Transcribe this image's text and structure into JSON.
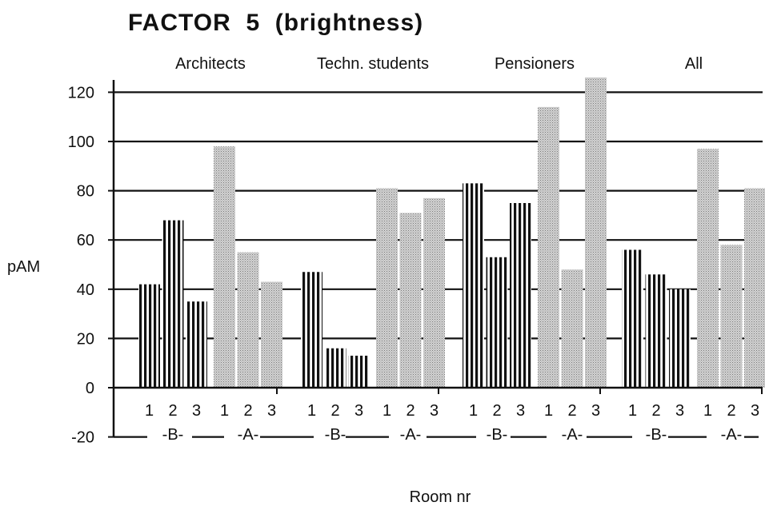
{
  "chart_data": {
    "type": "bar",
    "title": "FACTOR  5  (brightness)",
    "ylabel": "pAM",
    "xlabel": "Room nr",
    "ylim": [
      -20,
      125
    ],
    "yticks": [
      "120",
      "100",
      "80",
      "60",
      "40",
      "20",
      "0",
      "-20"
    ],
    "ytick_values": [
      120,
      100,
      80,
      60,
      40,
      20,
      0,
      -20
    ],
    "grid": true,
    "colors": {
      "B": "#111111",
      "A": "#c8c8c8",
      "grid": "#111111"
    },
    "groups": [
      {
        "name": "Architects",
        "B": {
          "label": "-B-",
          "rooms": [
            "1",
            "2",
            "3"
          ],
          "values": [
            42,
            68,
            35
          ]
        },
        "A": {
          "label": "-A-",
          "rooms": [
            "1",
            "2",
            "3"
          ],
          "values": [
            98,
            55,
            43
          ]
        }
      },
      {
        "name": "Techn. students",
        "B": {
          "label": "-B-",
          "rooms": [
            "1",
            "2",
            "3"
          ],
          "values": [
            47,
            16,
            13
          ]
        },
        "A": {
          "label": "-A-",
          "rooms": [
            "1",
            "2",
            "3"
          ],
          "values": [
            81,
            71,
            77
          ]
        }
      },
      {
        "name": "Pensioners",
        "B": {
          "label": "-B-",
          "rooms": [
            "1",
            "2",
            "3"
          ],
          "values": [
            83,
            53,
            75
          ]
        },
        "A": {
          "label": "-A-",
          "rooms": [
            "1",
            "2",
            "3"
          ],
          "values": [
            114,
            48,
            126
          ]
        }
      },
      {
        "name": "All",
        "B": {
          "label": "-B-",
          "rooms": [
            "1",
            "2",
            "3"
          ],
          "values": [
            56,
            46,
            40
          ]
        },
        "A": {
          "label": "-A-",
          "rooms": [
            "1",
            "2",
            "3"
          ],
          "values": [
            97,
            58,
            81
          ]
        }
      }
    ]
  }
}
